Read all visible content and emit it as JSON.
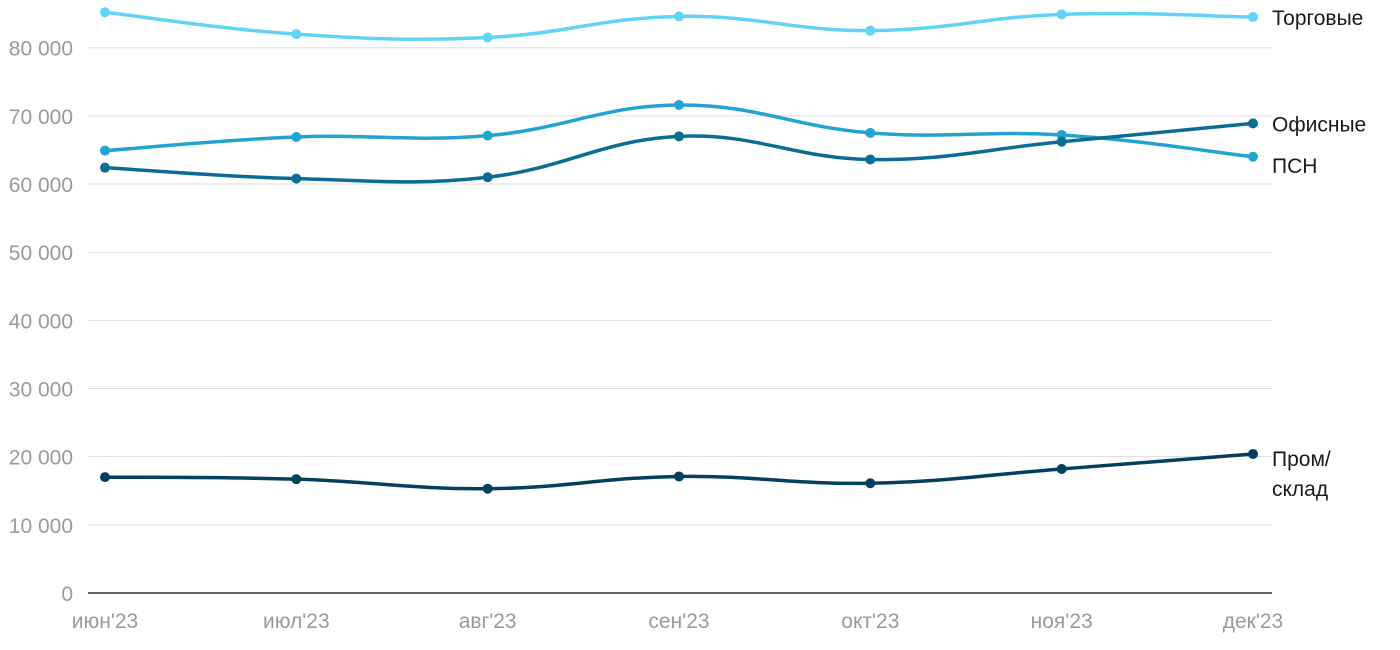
{
  "chart_data": {
    "type": "line",
    "title": "",
    "xlabel": "",
    "ylabel": "",
    "categories": [
      "июн'23",
      "июл'23",
      "авг'23",
      "сен'23",
      "окт'23",
      "ноя'23",
      "дек'23"
    ],
    "ylim": [
      0,
      85000
    ],
    "yticks": [
      0,
      10000,
      20000,
      30000,
      40000,
      50000,
      60000,
      70000,
      80000
    ],
    "ytick_labels": [
      "0",
      "10 000",
      "20 000",
      "30 000",
      "40 000",
      "50 000",
      "60 000",
      "70 000",
      "80 000"
    ],
    "grid": true,
    "legend": "inline-right",
    "series": [
      {
        "name": "Торговые",
        "label_lines": [
          "Торговые"
        ],
        "color": "#63d3f5",
        "values": [
          85200,
          82000,
          81500,
          84600,
          82500,
          84900,
          84500
        ]
      },
      {
        "name": "ПСН",
        "label_lines": [
          "ПСН"
        ],
        "color": "#23a3d0",
        "values": [
          64900,
          66900,
          67100,
          71600,
          67500,
          67200,
          64000
        ]
      },
      {
        "name": "Офисные",
        "label_lines": [
          "Офисные"
        ],
        "color": "#0b6d93",
        "values": [
          62400,
          60800,
          61000,
          67000,
          63600,
          66200,
          68900
        ]
      },
      {
        "name": "Пром/склад",
        "label_lines": [
          "Пром/",
          "склад"
        ],
        "color": "#053f60",
        "values": [
          17000,
          16700,
          15300,
          17100,
          16100,
          18200,
          20400
        ]
      }
    ]
  }
}
